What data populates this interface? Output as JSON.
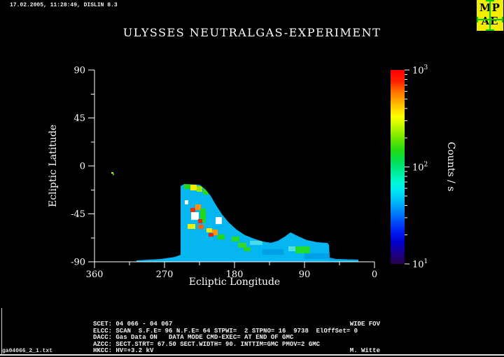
{
  "header": {
    "timestamp": "17.02.2005, 11:28:49, DISLIN 8.3",
    "logo": {
      "line1": "MP",
      "line2": "AE",
      "bg_color": "#f2ee00",
      "cross_color": "#00cc00",
      "text_color": "#000000"
    }
  },
  "chart_data": {
    "type": "heatmap",
    "title": "ULYSSES NEUTRALGAS-EXPERIMENT",
    "xlabel": "Ecliptic Longitude",
    "ylabel": "Ecliptic Latitude",
    "xlim": [
      360,
      0
    ],
    "ylim": [
      -90,
      90
    ],
    "x_axis_reversed": true,
    "grid": false,
    "x_ticks": [
      360,
      270,
      180,
      90,
      0
    ],
    "x_minor_ticks": [
      315,
      225,
      135,
      45
    ],
    "y_ticks": [
      90,
      45,
      0,
      -45,
      -90
    ],
    "y_minor_ticks": [
      67.5,
      22.5,
      -22.5,
      -67.5
    ],
    "base_color": "#05b6f0",
    "band_outline": [
      [
        306.0,
        -88.7
      ],
      [
        274.5,
        -87.4
      ],
      [
        256.5,
        -85.4
      ],
      [
        249.3,
        -83.4
      ],
      [
        249.3,
        -19.0
      ],
      [
        244.8,
        -17.1
      ],
      [
        225.0,
        -17.7
      ],
      [
        217.8,
        -21.7
      ],
      [
        210.6,
        -28.2
      ],
      [
        204.3,
        -36.1
      ],
      [
        196.2,
        -45.3
      ],
      [
        187.2,
        -53.2
      ],
      [
        177.3,
        -59.8
      ],
      [
        166.5,
        -65.0
      ],
      [
        154.8,
        -68.3
      ],
      [
        144.0,
        -70.9
      ],
      [
        133.2,
        -72.2
      ],
      [
        124.2,
        -70.3
      ],
      [
        115.2,
        -66.3
      ],
      [
        108.0,
        -62.4
      ],
      [
        99.0,
        -65.7
      ],
      [
        87.3,
        -69.6
      ],
      [
        73.8,
        -71.6
      ],
      [
        60.3,
        -72.3
      ],
      [
        58.5,
        -74.2
      ],
      [
        57.6,
        -86.1
      ],
      [
        49.5,
        -87.4
      ],
      [
        20.7,
        -88.0
      ],
      [
        20.7,
        -90.0
      ],
      [
        306.0,
        -90.0
      ]
    ],
    "cells": [
      {
        "lon": 244.8,
        "lat": -17.1,
        "dlon": 8.1,
        "dlat": 4.6,
        "color": "#22d816",
        "counts": 120
      },
      {
        "lon": 236.7,
        "lat": -17.7,
        "dlon": 8.1,
        "dlat": 5.3,
        "color": "#f0f000",
        "counts": 250
      },
      {
        "lon": 228.6,
        "lat": -19.0,
        "dlon": 7.2,
        "dlat": 5.3,
        "color": "#a0e800",
        "counts": 180
      },
      {
        "lon": 220.5,
        "lat": -21.7,
        "dlon": 7.2,
        "dlat": 5.3,
        "color": "#28d820",
        "counts": 120
      },
      {
        "lon": 243.9,
        "lat": -32.2,
        "dlon": 4.5,
        "dlat": 3.9,
        "color": "#ffffff",
        "counts": 1000
      },
      {
        "lon": 230.4,
        "lat": -36.1,
        "dlon": 7.2,
        "dlat": 5.3,
        "color": "#ff9000",
        "counts": 400
      },
      {
        "lon": 236.7,
        "lat": -39.4,
        "dlon": 6.3,
        "dlat": 3.9,
        "color": "#f03000",
        "counts": 700
      },
      {
        "lon": 224.1,
        "lat": -40.1,
        "dlon": 7.2,
        "dlat": 13.1,
        "color": "#20d818",
        "counts": 120
      },
      {
        "lon": 235.8,
        "lat": -43.4,
        "dlon": 9.9,
        "dlat": 7.2,
        "color": "#ffffff",
        "counts": 1000
      },
      {
        "lon": 226.8,
        "lat": -49.9,
        "dlon": 5.4,
        "dlat": 3.9,
        "color": "#f02800",
        "counts": 700
      },
      {
        "lon": 204.3,
        "lat": -48.0,
        "dlon": 8.1,
        "dlat": 6.6,
        "color": "#ffffff",
        "counts": 1000
      },
      {
        "lon": 240.3,
        "lat": -54.5,
        "dlon": 9.9,
        "dlat": 4.6,
        "color": "#f0f000",
        "counts": 250
      },
      {
        "lon": 226.8,
        "lat": -55.2,
        "dlon": 7.2,
        "dlat": 3.9,
        "color": "#ff6000",
        "counts": 500
      },
      {
        "lon": 216.0,
        "lat": -58.5,
        "dlon": 7.2,
        "dlat": 3.9,
        "color": "#f0f000",
        "counts": 250
      },
      {
        "lon": 208.8,
        "lat": -59.8,
        "dlon": 7.2,
        "dlat": 5.3,
        "color": "#ff9800",
        "counts": 400
      },
      {
        "lon": 213.3,
        "lat": -63.1,
        "dlon": 6.3,
        "dlat": 3.3,
        "color": "#f02000",
        "counts": 700
      },
      {
        "lon": 201.6,
        "lat": -64.4,
        "dlon": 9.0,
        "dlat": 4.6,
        "color": "#20d818",
        "counts": 120
      },
      {
        "lon": 183.6,
        "lat": -66.3,
        "dlon": 9.9,
        "dlat": 4.6,
        "color": "#28dc20",
        "counts": 120
      },
      {
        "lon": 175.5,
        "lat": -72.2,
        "dlon": 10.8,
        "dlat": 4.6,
        "color": "#30d828",
        "counts": 110
      },
      {
        "lon": 168.3,
        "lat": -76.2,
        "dlon": 9.0,
        "dlat": 3.9,
        "color": "#28d424",
        "counts": 110
      },
      {
        "lon": 160.2,
        "lat": -70.3,
        "dlon": 16.2,
        "dlat": 3.9,
        "color": "#48dce8",
        "counts": 60
      },
      {
        "lon": 110.7,
        "lat": -75.5,
        "dlon": 9.0,
        "dlat": 4.6,
        "color": "#50e0e0",
        "counts": 60
      },
      {
        "lon": 101.7,
        "lat": -75.5,
        "dlon": 18.9,
        "dlat": 6.6,
        "color": "#20dc30",
        "counts": 120
      },
      {
        "lon": 144.0,
        "lat": -78.1,
        "dlon": 27.0,
        "dlat": 5.3,
        "color": "#00a0e8",
        "counts": 28
      },
      {
        "lon": 90.0,
        "lat": -82.1,
        "dlon": 32.4,
        "dlat": 5.3,
        "color": "#00a0e8",
        "counts": 28
      },
      {
        "lon": 57.6,
        "lat": -86.1,
        "dlon": 36.9,
        "dlat": 2.6,
        "color": "#00a2e2",
        "counts": 30
      },
      {
        "lon": 338.4,
        "lat": -5.9,
        "dlon": 2.7,
        "dlat": 1.4,
        "color": "#e8f000",
        "counts": 250,
        "outside": true
      },
      {
        "lon": 336.6,
        "lat": -7.3,
        "dlon": 1.8,
        "dlat": 1.4,
        "color": "#30d020",
        "counts": 120,
        "outside": true
      }
    ],
    "colorbar": {
      "label": "Counts / s",
      "scale": "log",
      "min": 10,
      "max": 1000,
      "tick_exponents": [
        3,
        2,
        1
      ],
      "tick_base": "10",
      "gradient": [
        {
          "o": 0,
          "c": "#ff0000"
        },
        {
          "o": 6,
          "c": "#ff2000"
        },
        {
          "o": 11,
          "c": "#ff7000"
        },
        {
          "o": 16,
          "c": "#ffa800"
        },
        {
          "o": 21,
          "c": "#ffe000"
        },
        {
          "o": 24,
          "c": "#ffff00"
        },
        {
          "o": 29,
          "c": "#c0f800"
        },
        {
          "o": 35,
          "c": "#70e800"
        },
        {
          "o": 42,
          "c": "#20d818"
        },
        {
          "o": 48,
          "c": "#00e060"
        },
        {
          "o": 54,
          "c": "#00efa8"
        },
        {
          "o": 58,
          "c": "#00f8d8"
        },
        {
          "o": 62,
          "c": "#00e8f0"
        },
        {
          "o": 67,
          "c": "#00c0f8"
        },
        {
          "o": 72,
          "c": "#0090f8"
        },
        {
          "o": 78,
          "c": "#0050f8"
        },
        {
          "o": 84,
          "c": "#0018f0"
        },
        {
          "o": 89,
          "c": "#0000c8"
        },
        {
          "o": 94,
          "c": "#1a0090"
        },
        {
          "o": 100,
          "c": "#26004a"
        }
      ]
    }
  },
  "footer": {
    "info_lines": [
      {
        "left": "SCET: 04 066 - 04 067",
        "right": "WIDE FOV"
      },
      {
        "left": "ELCC: SCAN  S.F.E= 96 N.F.E= 64 STPWI=  2 STPNO= 16  9738  ElOffSet= 0",
        "right": ""
      },
      {
        "left": "DACC: Gas Data ON   DATA MODE CMD-EXEC= AT END OF GMC",
        "right": ""
      },
      {
        "left": "AZCC: SECT.STRT= 67.50 SECT.WIDTH= 90. INTTIM=GMC PMOV=2 GMC",
        "right": ""
      },
      {
        "left": "HKCC: HV=+3.2 kV",
        "right": "M. Witte"
      }
    ],
    "filename": "ga04066_2_1.txt"
  }
}
